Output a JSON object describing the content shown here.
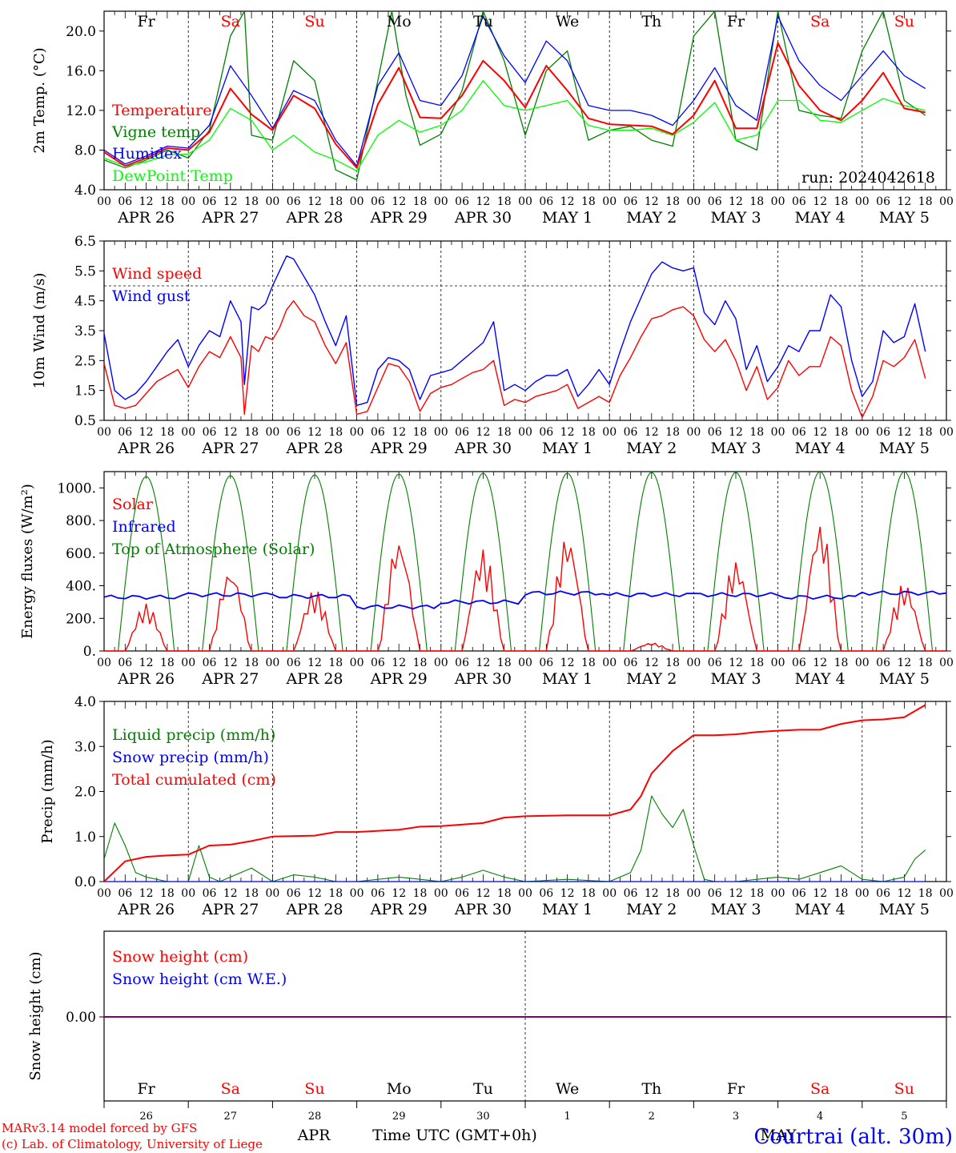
{
  "run_label": "run: 2024042618",
  "station": "Courtrai (alt. 30m)",
  "credits": [
    "MARv3.14 model forced by GFS",
    "(c) Lab. of Climatology, University of Liege"
  ],
  "xaxis": {
    "hour_ticks": [
      "00",
      "06",
      "12",
      "18"
    ],
    "end_tick": "00",
    "dates": [
      "APR 26",
      "APR 27",
      "APR 28",
      "APR 29",
      "APR 30",
      "MAY  1",
      "MAY  2",
      "MAY  3",
      "MAY  4",
      "MAY  5"
    ],
    "weekdays": [
      "Fr",
      "Sa",
      "Su",
      "Mo",
      "Tu",
      "We",
      "Th",
      "Fr",
      "Sa",
      "Su"
    ],
    "weekend_flags": [
      false,
      true,
      true,
      false,
      false,
      false,
      false,
      false,
      true,
      true
    ],
    "day_numbers": [
      "26",
      "27",
      "28",
      "29",
      "30",
      "1",
      "2",
      "3",
      "4",
      "5"
    ],
    "month_labels": [
      "APR",
      "MAY"
    ],
    "xlabel": "Time UTC (GMT+0h)"
  },
  "colors": {
    "red": "#ff0000",
    "green": "#008000",
    "blue": "#0000ff",
    "lightgreen": "#00ff00",
    "purple": "#7f007f"
  },
  "chart_data": [
    {
      "type": "line",
      "ylabel": "2m Temp. (°C)",
      "ylim": [
        4.0,
        22.0
      ],
      "yticks": [
        "4.0",
        "8.0",
        "12.0",
        "16.0",
        "20.0"
      ],
      "ytick_values": [
        4,
        8,
        12,
        16,
        20
      ],
      "x_unit": "hours since APR 26 00 UTC",
      "series": [
        {
          "name": "Temperature",
          "color": "#ff0000",
          "x": [
            0,
            6,
            12,
            18,
            24,
            30,
            36,
            42,
            48,
            54,
            60,
            66,
            72,
            78,
            84,
            90,
            96,
            102,
            108,
            114,
            120,
            126,
            132,
            138,
            144,
            150,
            156,
            162,
            168,
            174,
            180,
            186,
            192,
            198,
            204,
            210,
            216,
            222,
            228,
            234
          ],
          "y": [
            7.8,
            6.4,
            7.2,
            8.2,
            8.0,
            9.8,
            14.2,
            11.6,
            10.0,
            13.5,
            12.2,
            8.6,
            6.2,
            12.6,
            16.3,
            11.3,
            11.2,
            13.5,
            17.0,
            15.0,
            12.3,
            16.5,
            14.0,
            11.2,
            10.6,
            10.5,
            10.4,
            9.6,
            11.5,
            15.0,
            10.2,
            10.2,
            18.8,
            14.5,
            12.0,
            11.0,
            13.0,
            15.8,
            12.2,
            11.8
          ]
        },
        {
          "name": "Vigne temp",
          "color": "#008000",
          "x": [
            0,
            6,
            12,
            18,
            24,
            30,
            36,
            40,
            42,
            48,
            54,
            60,
            66,
            72,
            78,
            82,
            86,
            90,
            96,
            102,
            108,
            114,
            120,
            126,
            132,
            138,
            144,
            150,
            156,
            162,
            168,
            174,
            180,
            186,
            192,
            198,
            204,
            210,
            216,
            222,
            228,
            234
          ],
          "y": [
            7.0,
            6.2,
            7.0,
            8.0,
            7.2,
            10.0,
            19.5,
            22.0,
            9.5,
            9.0,
            17.0,
            15.0,
            6.0,
            5.0,
            15.0,
            22.0,
            13.5,
            8.5,
            9.6,
            14.0,
            22.0,
            17.0,
            9.5,
            16.0,
            18.0,
            9.0,
            10.0,
            10.4,
            9.0,
            8.4,
            19.5,
            22.0,
            9.0,
            8.0,
            22.0,
            12.0,
            11.5,
            11.2,
            18.0,
            22.0,
            13.0,
            11.5
          ]
        },
        {
          "name": "Humidex",
          "color": "#0000ff",
          "x": [
            0,
            6,
            12,
            18,
            24,
            30,
            36,
            42,
            48,
            54,
            60,
            66,
            72,
            78,
            84,
            90,
            96,
            102,
            108,
            114,
            120,
            126,
            132,
            138,
            144,
            150,
            156,
            162,
            168,
            174,
            180,
            186,
            192,
            198,
            204,
            210,
            216,
            222,
            228,
            234
          ],
          "y": [
            8.0,
            6.6,
            7.4,
            8.4,
            8.2,
            10.5,
            16.5,
            13.5,
            10.2,
            14.0,
            13.0,
            9.0,
            6.4,
            14.5,
            17.8,
            13.0,
            12.5,
            15.5,
            21.5,
            17.5,
            14.8,
            19.0,
            17.0,
            12.5,
            12.0,
            12.0,
            11.5,
            10.5,
            13.0,
            16.3,
            12.5,
            11.0,
            21.5,
            17.0,
            14.5,
            13.0,
            15.5,
            18.0,
            15.5,
            14.2
          ]
        },
        {
          "name": "DewPoint Temp",
          "color": "#00ff00",
          "x": [
            0,
            6,
            12,
            18,
            24,
            30,
            36,
            42,
            48,
            54,
            60,
            66,
            72,
            78,
            84,
            90,
            96,
            102,
            108,
            114,
            120,
            126,
            132,
            138,
            144,
            150,
            156,
            162,
            168,
            174,
            180,
            186,
            192,
            198,
            204,
            210,
            216,
            222,
            228,
            234
          ],
          "y": [
            7.2,
            6.4,
            6.8,
            7.5,
            7.6,
            9.0,
            12.2,
            11.0,
            8.0,
            9.5,
            7.8,
            7.0,
            5.9,
            9.5,
            11.0,
            9.8,
            10.5,
            12.0,
            15.0,
            12.5,
            12.0,
            12.5,
            13.0,
            10.5,
            10.0,
            10.0,
            10.2,
            9.5,
            10.8,
            12.8,
            9.0,
            9.5,
            13.0,
            13.0,
            11.0,
            10.8,
            12.0,
            13.2,
            12.5,
            12.0
          ]
        }
      ],
      "annotations": [
        "Temperature",
        "Vigne temp",
        "Humidex",
        "DewPoint Temp"
      ]
    },
    {
      "type": "line",
      "ylabel": "10m Wind (m/s)",
      "ylim": [
        0.5,
        6.5
      ],
      "yticks": [
        "0.5",
        "1.5",
        "2.5",
        "3.5",
        "4.5",
        "5.5",
        "6.5"
      ],
      "ytick_values": [
        0.5,
        1.5,
        2.5,
        3.5,
        4.5,
        5.5,
        6.5
      ],
      "threshold": 5.0,
      "series": [
        {
          "name": "Wind speed",
          "color": "#ff0000",
          "x": [
            0,
            3,
            6,
            9,
            12,
            15,
            18,
            21,
            24,
            27,
            30,
            33,
            36,
            39,
            40,
            42,
            44,
            46,
            48,
            50,
            52,
            54,
            57,
            60,
            63,
            66,
            69,
            72,
            75,
            78,
            81,
            84,
            87,
            90,
            93,
            96,
            99,
            102,
            105,
            108,
            111,
            114,
            117,
            120,
            123,
            126,
            129,
            132,
            135,
            138,
            141,
            144,
            147,
            150,
            153,
            156,
            159,
            162,
            165,
            168,
            171,
            174,
            177,
            180,
            183,
            186,
            189,
            192,
            195,
            198,
            201,
            204,
            207,
            210,
            213,
            216,
            219,
            222,
            225,
            228,
            231,
            234
          ],
          "y": [
            2.4,
            1.0,
            0.9,
            1.0,
            1.4,
            1.8,
            2.0,
            2.2,
            1.6,
            2.3,
            2.8,
            2.6,
            3.3,
            2.6,
            0.7,
            3.0,
            2.8,
            3.3,
            3.2,
            3.6,
            4.2,
            4.5,
            4.0,
            3.8,
            3.0,
            2.4,
            3.1,
            0.7,
            0.8,
            1.6,
            2.4,
            2.3,
            1.8,
            0.8,
            1.4,
            1.6,
            1.7,
            1.9,
            2.1,
            2.2,
            2.5,
            1.0,
            1.2,
            1.1,
            1.3,
            1.4,
            1.5,
            1.7,
            0.9,
            1.1,
            1.3,
            1.1,
            2.0,
            2.6,
            3.3,
            3.9,
            4.0,
            4.2,
            4.3,
            4.0,
            3.2,
            2.8,
            3.2,
            2.5,
            1.5,
            2.3,
            1.2,
            1.6,
            2.5,
            2.0,
            2.3,
            2.3,
            3.3,
            3.0,
            1.5,
            0.6,
            1.3,
            2.5,
            2.3,
            2.6,
            3.2,
            1.9
          ]
        },
        {
          "name": "Wind gust",
          "color": "#0000ff",
          "x": [
            0,
            3,
            6,
            9,
            12,
            15,
            18,
            21,
            24,
            27,
            30,
            33,
            36,
            39,
            40,
            42,
            44,
            46,
            48,
            50,
            52,
            54,
            57,
            60,
            63,
            66,
            69,
            72,
            75,
            78,
            81,
            84,
            87,
            90,
            93,
            96,
            99,
            102,
            105,
            108,
            111,
            114,
            117,
            120,
            123,
            126,
            129,
            132,
            135,
            138,
            141,
            144,
            147,
            150,
            153,
            156,
            159,
            162,
            165,
            168,
            171,
            174,
            177,
            180,
            183,
            186,
            189,
            192,
            195,
            198,
            201,
            204,
            207,
            210,
            213,
            216,
            219,
            222,
            225,
            228,
            231,
            234
          ],
          "y": [
            3.4,
            1.5,
            1.2,
            1.4,
            1.8,
            2.3,
            2.8,
            3.2,
            2.3,
            3.0,
            3.5,
            3.3,
            4.5,
            3.8,
            1.7,
            4.3,
            4.2,
            4.4,
            5.0,
            5.5,
            6.0,
            5.9,
            5.3,
            4.7,
            3.8,
            3.0,
            4.0,
            1.0,
            1.1,
            2.2,
            2.6,
            2.5,
            2.2,
            1.2,
            2.0,
            2.1,
            2.2,
            2.5,
            2.8,
            3.1,
            3.8,
            1.5,
            1.7,
            1.5,
            1.8,
            2.0,
            2.0,
            2.2,
            1.3,
            1.7,
            2.2,
            1.7,
            2.8,
            3.8,
            4.6,
            5.4,
            5.8,
            5.6,
            5.5,
            5.6,
            4.1,
            3.7,
            4.5,
            3.9,
            2.2,
            3.0,
            1.8,
            2.3,
            3.0,
            2.8,
            3.5,
            3.5,
            4.7,
            4.3,
            2.5,
            1.3,
            1.8,
            3.5,
            3.1,
            3.3,
            4.4,
            2.8
          ]
        }
      ],
      "annotations": [
        "Wind speed",
        "Wind gust"
      ]
    },
    {
      "type": "line",
      "ylabel": "Energy fluxes (W/m²)",
      "ylim": [
        0,
        1100
      ],
      "yticks": [
        "0.",
        "200.",
        "400.",
        "600.",
        "800.",
        "1000."
      ],
      "ytick_values": [
        0,
        200,
        400,
        600,
        800,
        1000
      ],
      "series": [
        {
          "name": "Solar",
          "color": "#ff0000",
          "daily_peaks": [
            290,
            510,
            380,
            700,
            630,
            720,
            50,
            560,
            800,
            420
          ]
        },
        {
          "name": "Infrared",
          "color": "#0000ff",
          "daily_base": [
            330,
            345,
            335,
            270,
            300,
            355,
            345,
            345,
            330,
            355
          ]
        },
        {
          "name": "Top of Atmosphere (Solar)",
          "color": "#008000",
          "daily_peaks": [
            1070,
            1075,
            1080,
            1085,
            1090,
            1090,
            1095,
            1095,
            1100,
            1100
          ]
        }
      ],
      "annotations": [
        "Solar",
        "Infrared",
        "Top of Atmosphere (Solar)"
      ]
    },
    {
      "type": "line",
      "ylabel": "Precip (mm/h)",
      "ylim": [
        0.0,
        4.0
      ],
      "yticks": [
        "0.0",
        "1.0",
        "2.0",
        "3.0",
        "4.0"
      ],
      "ytick_values": [
        0,
        1,
        2,
        3,
        4
      ],
      "series": [
        {
          "name": "Liquid precip (mm/h)",
          "color": "#008000",
          "x": [
            0,
            3,
            6,
            9,
            12,
            18,
            24,
            27,
            30,
            33,
            36,
            42,
            48,
            54,
            60,
            66,
            72,
            84,
            90,
            96,
            102,
            108,
            114,
            120,
            132,
            144,
            150,
            153,
            156,
            159,
            162,
            165,
            168,
            171,
            174,
            180,
            192,
            198,
            204,
            210,
            216,
            222,
            228,
            231,
            234
          ],
          "y": [
            0.5,
            1.3,
            0.8,
            0.2,
            0.1,
            0.0,
            0.0,
            0.8,
            0.1,
            0.0,
            0.1,
            0.3,
            0.0,
            0.15,
            0.1,
            0.0,
            0.0,
            0.1,
            0.05,
            0.0,
            0.1,
            0.25,
            0.1,
            0.0,
            0.05,
            0.0,
            0.2,
            0.7,
            1.9,
            1.5,
            1.2,
            1.6,
            0.8,
            0.05,
            0.0,
            0.0,
            0.1,
            0.05,
            0.2,
            0.35,
            0.05,
            0.0,
            0.1,
            0.5,
            0.7
          ]
        },
        {
          "name": "Snow precip (mm/h)",
          "color": "#0000ff",
          "x": [
            0,
            234
          ],
          "y": [
            0,
            0
          ]
        },
        {
          "name": "Total cumulated (cm)",
          "color": "#ff0000",
          "x": [
            0,
            6,
            12,
            18,
            24,
            30,
            36,
            42,
            48,
            60,
            66,
            72,
            84,
            90,
            96,
            108,
            114,
            120,
            132,
            144,
            150,
            153,
            156,
            162,
            168,
            174,
            180,
            186,
            192,
            198,
            204,
            210,
            216,
            222,
            228,
            234
          ],
          "y": [
            0.0,
            0.45,
            0.55,
            0.58,
            0.6,
            0.8,
            0.82,
            0.9,
            1.0,
            1.02,
            1.1,
            1.1,
            1.15,
            1.22,
            1.23,
            1.3,
            1.42,
            1.45,
            1.47,
            1.47,
            1.6,
            1.9,
            2.4,
            2.9,
            3.25,
            3.25,
            3.27,
            3.32,
            3.35,
            3.37,
            3.37,
            3.5,
            3.58,
            3.6,
            3.65,
            3.92
          ]
        }
      ],
      "annotations": [
        "Liquid precip (mm/h)",
        "Snow precip (mm/h)",
        "Total cumulated (cm)"
      ]
    },
    {
      "type": "line",
      "ylabel": "Snow height (cm)",
      "yticks": [
        "0.00"
      ],
      "ytick_values": [
        0
      ],
      "series": [
        {
          "name": "Snow height (cm)",
          "color": "#ff0000",
          "x": [
            0,
            240
          ],
          "y": [
            0,
            0
          ]
        },
        {
          "name": "Snow height (cm W.E.)",
          "color": "#0000ff",
          "x": [
            0,
            240
          ],
          "y": [
            0,
            0
          ]
        }
      ],
      "annotations": [
        "Snow height (cm)",
        "Snow height (cm W.E.)"
      ]
    }
  ]
}
